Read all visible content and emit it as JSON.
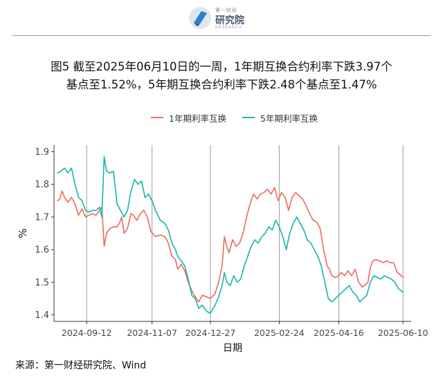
{
  "header": {
    "logo": {
      "top_text": "第一财经",
      "main_text": "研究院",
      "sub_text": "RESEARCH"
    },
    "title_line1": "图5  截至2025年06月10日的一周，1年期互换合约利率下跌3.97个",
    "title_line2": "基点至1.52%，5年期互换合约利率下跌2.48个基点至1.47%"
  },
  "footer": {
    "source": "来源：第一财经研究院、Wind"
  },
  "chart_data": {
    "type": "line",
    "title": "",
    "xlabel": "日期",
    "ylabel": "%",
    "ylim": [
      1.38,
      1.92
    ],
    "yticks": [
      1.4,
      1.5,
      1.6,
      1.7,
      1.8,
      1.9
    ],
    "ytick_labels": [
      "1.4",
      "1.5",
      "1.6",
      "1.7",
      "1.8",
      "1.9"
    ],
    "x_range": [
      "2024-08-15",
      "2025-06-17"
    ],
    "xticks": [
      "2024-09-12",
      "2024-11-07",
      "2024-12-27",
      "2025-02-24",
      "2025-04-16",
      "2025-06-10"
    ],
    "grid": "vertical at x ticks",
    "legend_position": "top",
    "series": [
      {
        "name": "1年期利率互换",
        "color": "#ef6f66",
        "points": [
          [
            "2024-08-18",
            1.75
          ],
          [
            "2024-08-20",
            1.755
          ],
          [
            "2024-08-22",
            1.78
          ],
          [
            "2024-08-24",
            1.76
          ],
          [
            "2024-08-27",
            1.745
          ],
          [
            "2024-08-30",
            1.76
          ],
          [
            "2024-09-02",
            1.74
          ],
          [
            "2024-09-05",
            1.705
          ],
          [
            "2024-09-08",
            1.725
          ],
          [
            "2024-09-11",
            1.7
          ],
          [
            "2024-09-14",
            1.705
          ],
          [
            "2024-09-17",
            1.71
          ],
          [
            "2024-09-20",
            1.705
          ],
          [
            "2024-09-22",
            1.715
          ],
          [
            "2024-09-25",
            1.73
          ],
          [
            "2024-09-27",
            1.61
          ],
          [
            "2024-09-29",
            1.65
          ],
          [
            "2024-10-02",
            1.665
          ],
          [
            "2024-10-05",
            1.67
          ],
          [
            "2024-10-08",
            1.67
          ],
          [
            "2024-10-10",
            1.68
          ],
          [
            "2024-10-12",
            1.7
          ],
          [
            "2024-10-14",
            1.65
          ],
          [
            "2024-10-17",
            1.665
          ],
          [
            "2024-10-20",
            1.71
          ],
          [
            "2024-10-22",
            1.705
          ],
          [
            "2024-10-25",
            1.69
          ],
          [
            "2024-10-28",
            1.71
          ],
          [
            "2024-10-31",
            1.72
          ],
          [
            "2024-11-03",
            1.7
          ],
          [
            "2024-11-06",
            1.655
          ],
          [
            "2024-11-10",
            1.64
          ],
          [
            "2024-11-14",
            1.645
          ],
          [
            "2024-11-18",
            1.64
          ],
          [
            "2024-11-21",
            1.62
          ],
          [
            "2024-11-24",
            1.58
          ],
          [
            "2024-11-27",
            1.57
          ],
          [
            "2024-11-29",
            1.54
          ],
          [
            "2024-12-02",
            1.555
          ],
          [
            "2024-12-05",
            1.535
          ],
          [
            "2024-12-08",
            1.5
          ],
          [
            "2024-12-11",
            1.475
          ],
          [
            "2024-12-14",
            1.455
          ],
          [
            "2024-12-17",
            1.44
          ],
          [
            "2024-12-20",
            1.46
          ],
          [
            "2024-12-24",
            1.455
          ],
          [
            "2024-12-27",
            1.45
          ],
          [
            "2024-12-31",
            1.465
          ],
          [
            "2025-01-03",
            1.5
          ],
          [
            "2025-01-06",
            1.55
          ],
          [
            "2025-01-08",
            1.64
          ],
          [
            "2025-01-10",
            1.61
          ],
          [
            "2025-01-12",
            1.59
          ],
          [
            "2025-01-15",
            1.63
          ],
          [
            "2025-01-18",
            1.61
          ],
          [
            "2025-01-21",
            1.62
          ],
          [
            "2025-01-24",
            1.65
          ],
          [
            "2025-01-27",
            1.7
          ],
          [
            "2025-01-30",
            1.74
          ],
          [
            "2025-02-02",
            1.77
          ],
          [
            "2025-02-05",
            1.755
          ],
          [
            "2025-02-08",
            1.77
          ],
          [
            "2025-02-11",
            1.775
          ],
          [
            "2025-02-14",
            1.785
          ],
          [
            "2025-02-17",
            1.77
          ],
          [
            "2025-02-20",
            1.79
          ],
          [
            "2025-02-23",
            1.75
          ],
          [
            "2025-02-26",
            1.775
          ],
          [
            "2025-03-01",
            1.76
          ],
          [
            "2025-03-04",
            1.72
          ],
          [
            "2025-03-07",
            1.76
          ],
          [
            "2025-03-10",
            1.775
          ],
          [
            "2025-03-13",
            1.765
          ],
          [
            "2025-03-16",
            1.755
          ],
          [
            "2025-03-19",
            1.735
          ],
          [
            "2025-03-22",
            1.71
          ],
          [
            "2025-03-25",
            1.69
          ],
          [
            "2025-03-28",
            1.685
          ],
          [
            "2025-03-31",
            1.665
          ],
          [
            "2025-04-03",
            1.6
          ],
          [
            "2025-04-06",
            1.55
          ],
          [
            "2025-04-08",
            1.54
          ],
          [
            "2025-04-10",
            1.52
          ],
          [
            "2025-04-13",
            1.515
          ],
          [
            "2025-04-16",
            1.52
          ],
          [
            "2025-04-18",
            1.53
          ],
          [
            "2025-04-21",
            1.52
          ],
          [
            "2025-04-24",
            1.535
          ],
          [
            "2025-04-27",
            1.52
          ],
          [
            "2025-04-30",
            1.54
          ],
          [
            "2025-05-03",
            1.5
          ],
          [
            "2025-05-06",
            1.485
          ],
          [
            "2025-05-08",
            1.49
          ],
          [
            "2025-05-11",
            1.5
          ],
          [
            "2025-05-13",
            1.545
          ],
          [
            "2025-05-15",
            1.565
          ],
          [
            "2025-05-18",
            1.57
          ],
          [
            "2025-05-21",
            1.565
          ],
          [
            "2025-05-24",
            1.56
          ],
          [
            "2025-05-27",
            1.565
          ],
          [
            "2025-05-30",
            1.56
          ],
          [
            "2025-06-02",
            1.56
          ],
          [
            "2025-06-05",
            1.53
          ],
          [
            "2025-06-07",
            1.525
          ],
          [
            "2025-06-10",
            1.515
          ]
        ]
      },
      {
        "name": "5年期利率互换",
        "color": "#1fb8ae",
        "points": [
          [
            "2024-08-18",
            1.835
          ],
          [
            "2024-08-21",
            1.84
          ],
          [
            "2024-08-24",
            1.85
          ],
          [
            "2024-08-27",
            1.835
          ],
          [
            "2024-08-30",
            1.85
          ],
          [
            "2024-09-02",
            1.8
          ],
          [
            "2024-09-05",
            1.76
          ],
          [
            "2024-09-08",
            1.75
          ],
          [
            "2024-09-11",
            1.72
          ],
          [
            "2024-09-14",
            1.715
          ],
          [
            "2024-09-17",
            1.72
          ],
          [
            "2024-09-20",
            1.72
          ],
          [
            "2024-09-23",
            1.73
          ],
          [
            "2024-09-25",
            1.7
          ],
          [
            "2024-09-27",
            1.885
          ],
          [
            "2024-09-29",
            1.84
          ],
          [
            "2024-10-02",
            1.835
          ],
          [
            "2024-10-05",
            1.84
          ],
          [
            "2024-10-08",
            1.74
          ],
          [
            "2024-10-11",
            1.72
          ],
          [
            "2024-10-14",
            1.7
          ],
          [
            "2024-10-17",
            1.72
          ],
          [
            "2024-10-20",
            1.78
          ],
          [
            "2024-10-23",
            1.815
          ],
          [
            "2024-10-26",
            1.8
          ],
          [
            "2024-10-29",
            1.81
          ],
          [
            "2024-11-01",
            1.76
          ],
          [
            "2024-11-04",
            1.77
          ],
          [
            "2024-11-07",
            1.75
          ],
          [
            "2024-11-10",
            1.72
          ],
          [
            "2024-11-14",
            1.69
          ],
          [
            "2024-11-18",
            1.68
          ],
          [
            "2024-11-21",
            1.66
          ],
          [
            "2024-11-24",
            1.62
          ],
          [
            "2024-11-27",
            1.6
          ],
          [
            "2024-11-29",
            1.58
          ],
          [
            "2024-12-02",
            1.565
          ],
          [
            "2024-12-05",
            1.55
          ],
          [
            "2024-12-08",
            1.51
          ],
          [
            "2024-12-11",
            1.46
          ],
          [
            "2024-12-14",
            1.45
          ],
          [
            "2024-12-17",
            1.42
          ],
          [
            "2024-12-20",
            1.43
          ],
          [
            "2024-12-24",
            1.41
          ],
          [
            "2024-12-27",
            1.405
          ],
          [
            "2024-12-31",
            1.43
          ],
          [
            "2025-01-03",
            1.455
          ],
          [
            "2025-01-06",
            1.49
          ],
          [
            "2025-01-08",
            1.53
          ],
          [
            "2025-01-10",
            1.5
          ],
          [
            "2025-01-13",
            1.49
          ],
          [
            "2025-01-16",
            1.52
          ],
          [
            "2025-01-19",
            1.5
          ],
          [
            "2025-01-22",
            1.51
          ],
          [
            "2025-01-25",
            1.55
          ],
          [
            "2025-01-28",
            1.58
          ],
          [
            "2025-01-31",
            1.61
          ],
          [
            "2025-02-03",
            1.63
          ],
          [
            "2025-02-06",
            1.62
          ],
          [
            "2025-02-09",
            1.64
          ],
          [
            "2025-02-12",
            1.65
          ],
          [
            "2025-02-15",
            1.67
          ],
          [
            "2025-02-18",
            1.66
          ],
          [
            "2025-02-21",
            1.69
          ],
          [
            "2025-02-24",
            1.67
          ],
          [
            "2025-02-27",
            1.64
          ],
          [
            "2025-03-02",
            1.6
          ],
          [
            "2025-03-05",
            1.65
          ],
          [
            "2025-03-08",
            1.68
          ],
          [
            "2025-03-11",
            1.7
          ],
          [
            "2025-03-14",
            1.68
          ],
          [
            "2025-03-17",
            1.66
          ],
          [
            "2025-03-20",
            1.63
          ],
          [
            "2025-03-23",
            1.62
          ],
          [
            "2025-03-26",
            1.6
          ],
          [
            "2025-03-29",
            1.58
          ],
          [
            "2025-04-01",
            1.55
          ],
          [
            "2025-04-04",
            1.5
          ],
          [
            "2025-04-07",
            1.45
          ],
          [
            "2025-04-10",
            1.44
          ],
          [
            "2025-04-13",
            1.45
          ],
          [
            "2025-04-16",
            1.46
          ],
          [
            "2025-04-19",
            1.47
          ],
          [
            "2025-04-22",
            1.48
          ],
          [
            "2025-04-25",
            1.49
          ],
          [
            "2025-04-28",
            1.47
          ],
          [
            "2025-05-01",
            1.46
          ],
          [
            "2025-05-04",
            1.44
          ],
          [
            "2025-05-07",
            1.45
          ],
          [
            "2025-05-10",
            1.46
          ],
          [
            "2025-05-13",
            1.5
          ],
          [
            "2025-05-16",
            1.52
          ],
          [
            "2025-05-19",
            1.515
          ],
          [
            "2025-05-22",
            1.51
          ],
          [
            "2025-05-25",
            1.52
          ],
          [
            "2025-05-28",
            1.515
          ],
          [
            "2025-05-31",
            1.51
          ],
          [
            "2025-06-03",
            1.5
          ],
          [
            "2025-06-06",
            1.48
          ],
          [
            "2025-06-08",
            1.475
          ],
          [
            "2025-06-10",
            1.47
          ]
        ]
      }
    ]
  }
}
